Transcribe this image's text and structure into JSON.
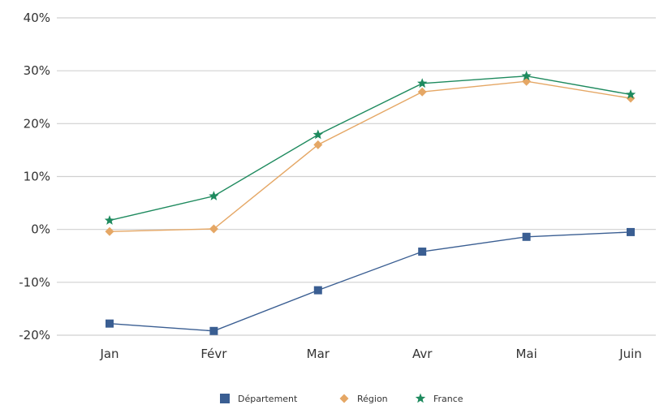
{
  "chart_data": {
    "type": "line",
    "categories": [
      "Jan",
      "Févr",
      "Mar",
      "Avr",
      "Mai",
      "Juin"
    ],
    "ylim": [
      -20,
      40
    ],
    "yticks": [
      -20,
      -10,
      0,
      10,
      20,
      30,
      40
    ],
    "ytick_labels": [
      "-20%",
      "-10%",
      "0%",
      "10%",
      "20%",
      "30%",
      "40%"
    ],
    "grid": true,
    "legend_position": "bottom",
    "series": [
      {
        "name": "Département",
        "values": [
          -17.8,
          -19.2,
          -11.5,
          -4.2,
          -1.4,
          -0.5
        ],
        "color": "#3a5e92",
        "marker": "square"
      },
      {
        "name": "Région",
        "values": [
          -0.4,
          0.1,
          16.0,
          26.0,
          28.0,
          24.8
        ],
        "color": "#e5a765",
        "marker": "diamond"
      },
      {
        "name": "France",
        "values": [
          1.7,
          6.3,
          17.9,
          27.6,
          29.0,
          25.5
        ],
        "color": "#1e8a5e",
        "marker": "star"
      }
    ]
  }
}
